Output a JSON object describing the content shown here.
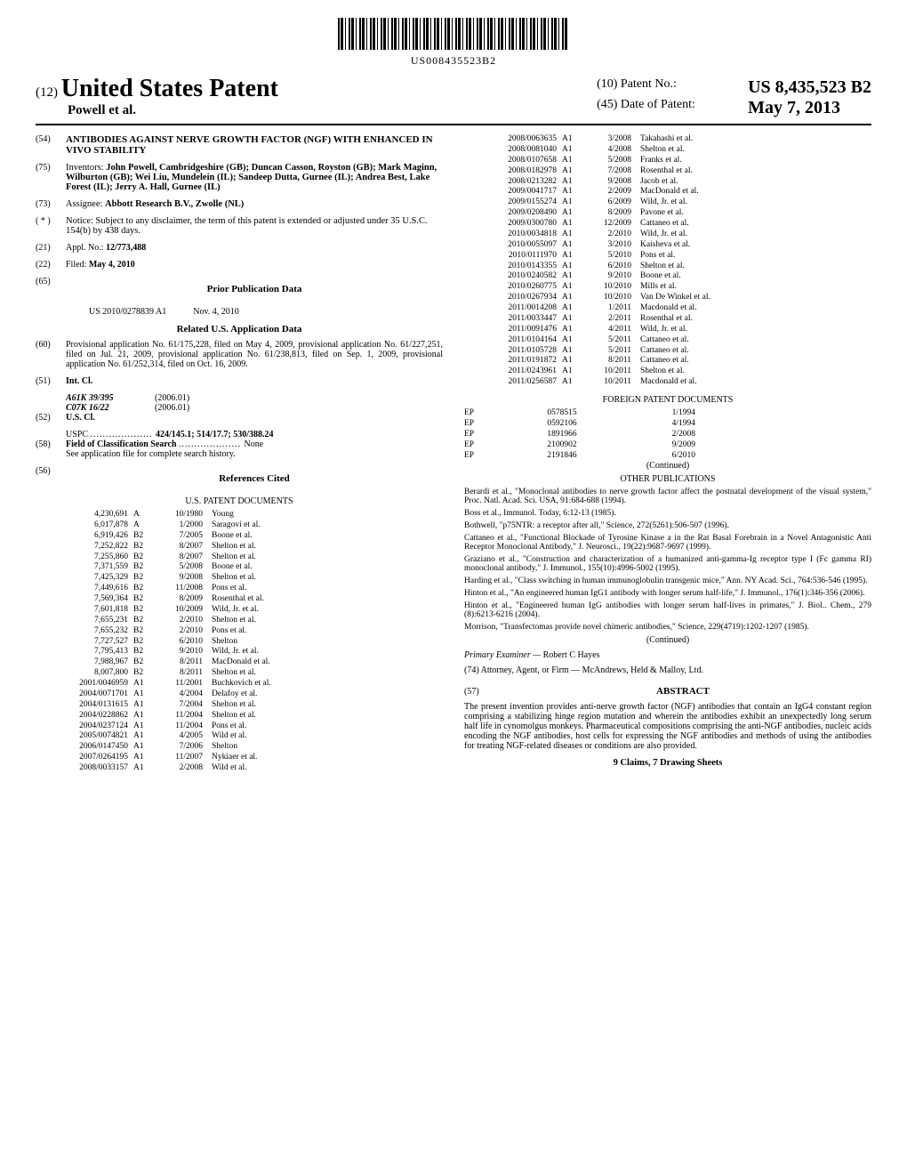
{
  "barcode_text": "US008435523B2",
  "header": {
    "prefix": "(12)",
    "usp": "United States Patent",
    "authors": "Powell et al.",
    "patno_label": "(10) Patent No.:",
    "patno": "US 8,435,523 B2",
    "date_label": "(45) Date of Patent:",
    "date": "May 7, 2013"
  },
  "left": {
    "title_num": "(54)",
    "title": "ANTIBODIES AGAINST NERVE GROWTH FACTOR (NGF) WITH ENHANCED IN VIVO STABILITY",
    "inv_num": "(75)",
    "inv_label": "Inventors:",
    "inventors": "John Powell, Cambridgeshire (GB); Duncan Casson, Royston (GB); Mark Maginn, Wilburton (GB); Wei Liu, Mundelein (IL); Sandeep Dutta, Gurnee (IL); Andrea Best, Lake Forest (IL); Jerry A. Hall, Gurnee (IL)",
    "ass_num": "(73)",
    "ass_label": "Assignee:",
    "assignee": "Abbott Research B.V., Zwolle (NL)",
    "notice_num": "( * )",
    "notice_label": "Notice:",
    "notice": "Subject to any disclaimer, the term of this patent is extended or adjusted under 35 U.S.C. 154(b) by 438 days.",
    "appl_num": "(21)",
    "appl_label": "Appl. No.:",
    "appl": "12/773,488",
    "filed_num": "(22)",
    "filed_label": "Filed:",
    "filed": "May 4, 2010",
    "prior_num": "(65)",
    "prior_head": "Prior Publication Data",
    "prior_pub": "US 2010/0278839 A1",
    "prior_date": "Nov. 4, 2010",
    "related_head": "Related U.S. Application Data",
    "prov_num": "(60)",
    "provisional": "Provisional application No. 61/175,228, filed on May 4, 2009, provisional application No. 61/227,251, filed on Jul. 21, 2009, provisional application No. 61/238,813, filed on Sep. 1, 2009, provisional application No. 61/252,314, filed on Oct. 16, 2009.",
    "intcl_num": "(51)",
    "intcl_label": "Int. Cl.",
    "intcl": [
      {
        "code": "A61K 39/395",
        "year": "(2006.01)"
      },
      {
        "code": "C07K 16/22",
        "year": "(2006.01)"
      }
    ],
    "uscl_num": "(52)",
    "uscl_label": "U.S. Cl.",
    "uscl_prefix": "USPC",
    "uscl": "424/145.1; 514/17.7; 530/388.24",
    "search_num": "(58)",
    "search_label": "Field of Classification Search",
    "search_val": "None",
    "search_note": "See application file for complete search history.",
    "refs_num": "(56)",
    "refs_head": "References Cited",
    "uspat_head": "U.S. PATENT DOCUMENTS",
    "us_patents": [
      [
        "4,230,691",
        "A",
        "10/1980",
        "Young"
      ],
      [
        "6,017,878",
        "A",
        "1/2000",
        "Saragovi et al."
      ],
      [
        "6,919,426",
        "B2",
        "7/2005",
        "Boone et al."
      ],
      [
        "7,252,822",
        "B2",
        "8/2007",
        "Shelton et al."
      ],
      [
        "7,255,860",
        "B2",
        "8/2007",
        "Shelton et al."
      ],
      [
        "7,371,559",
        "B2",
        "5/2008",
        "Boone et al."
      ],
      [
        "7,425,329",
        "B2",
        "9/2008",
        "Shelton et al."
      ],
      [
        "7,449,616",
        "B2",
        "11/2008",
        "Pons et al."
      ],
      [
        "7,569,364",
        "B2",
        "8/2009",
        "Rosenthal et al."
      ],
      [
        "7,601,818",
        "B2",
        "10/2009",
        "Wild, Jr. et al."
      ],
      [
        "7,655,231",
        "B2",
        "2/2010",
        "Shelton et al."
      ],
      [
        "7,655,232",
        "B2",
        "2/2010",
        "Pons et al."
      ],
      [
        "7,727,527",
        "B2",
        "6/2010",
        "Shelton"
      ],
      [
        "7,795,413",
        "B2",
        "9/2010",
        "Wild, Jr. et al."
      ],
      [
        "7,988,967",
        "B2",
        "8/2011",
        "MacDonald et al."
      ],
      [
        "8,007,800",
        "B2",
        "8/2011",
        "Shelton et al."
      ],
      [
        "2001/0046959",
        "A1",
        "11/2001",
        "Buchkovich et al."
      ],
      [
        "2004/0071701",
        "A1",
        "4/2004",
        "Delafoy et al."
      ],
      [
        "2004/0131615",
        "A1",
        "7/2004",
        "Shelton et al."
      ],
      [
        "2004/0228862",
        "A1",
        "11/2004",
        "Shelton et al."
      ],
      [
        "2004/0237124",
        "A1",
        "11/2004",
        "Pons et al."
      ],
      [
        "2005/0074821",
        "A1",
        "4/2005",
        "Wild et al."
      ],
      [
        "2006/0147450",
        "A1",
        "7/2006",
        "Shelton"
      ],
      [
        "2007/0264195",
        "A1",
        "11/2007",
        "Nykiaer et al."
      ],
      [
        "2008/0033157",
        "A1",
        "2/2008",
        "Wild et al."
      ]
    ]
  },
  "right": {
    "us_patents_cont": [
      [
        "2008/0063635",
        "A1",
        "3/2008",
        "Takahashi et al."
      ],
      [
        "2008/0081040",
        "A1",
        "4/2008",
        "Shelton et al."
      ],
      [
        "2008/0107658",
        "A1",
        "5/2008",
        "Franks et al."
      ],
      [
        "2008/0182978",
        "A1",
        "7/2008",
        "Rosenthal et al."
      ],
      [
        "2008/0213282",
        "A1",
        "9/2008",
        "Jacob et al."
      ],
      [
        "2009/0041717",
        "A1",
        "2/2009",
        "MacDonald et al."
      ],
      [
        "2009/0155274",
        "A1",
        "6/2009",
        "Wild, Jr. et al."
      ],
      [
        "2009/0208490",
        "A1",
        "8/2009",
        "Pavone et al."
      ],
      [
        "2009/0300780",
        "A1",
        "12/2009",
        "Cattaneo et al."
      ],
      [
        "2010/0034818",
        "A1",
        "2/2010",
        "Wild, Jr. et al."
      ],
      [
        "2010/0055097",
        "A1",
        "3/2010",
        "Kaisheva et al."
      ],
      [
        "2010/0111970",
        "A1",
        "5/2010",
        "Pons et al."
      ],
      [
        "2010/0143355",
        "A1",
        "6/2010",
        "Shelton et al."
      ],
      [
        "2010/0240582",
        "A1",
        "9/2010",
        "Boone et al."
      ],
      [
        "2010/0260775",
        "A1",
        "10/2010",
        "Mills et al."
      ],
      [
        "2010/0267934",
        "A1",
        "10/2010",
        "Van De Winkel et al."
      ],
      [
        "2011/0014208",
        "A1",
        "1/2011",
        "Macdonald et al."
      ],
      [
        "2011/0033447",
        "A1",
        "2/2011",
        "Rosenthal et al."
      ],
      [
        "2011/0091476",
        "A1",
        "4/2011",
        "Wild, Jr. et al."
      ],
      [
        "2011/0104164",
        "A1",
        "5/2011",
        "Cattaneo et al."
      ],
      [
        "2011/0105728",
        "A1",
        "5/2011",
        "Cattaneo et al."
      ],
      [
        "2011/0191872",
        "A1",
        "8/2011",
        "Cattaneo et al."
      ],
      [
        "2011/0243961",
        "A1",
        "10/2011",
        "Shelton et al."
      ],
      [
        "2011/0256587",
        "A1",
        "10/2011",
        "Macdonald et al."
      ]
    ],
    "foreign_head": "FOREIGN PATENT DOCUMENTS",
    "foreign": [
      [
        "EP",
        "0578515",
        "1/1994"
      ],
      [
        "EP",
        "0592106",
        "4/1994"
      ],
      [
        "EP",
        "1891966",
        "2/2008"
      ],
      [
        "EP",
        "2100902",
        "9/2009"
      ],
      [
        "EP",
        "2191846",
        "6/2010"
      ]
    ],
    "continued": "(Continued)",
    "otherpub_head": "OTHER PUBLICATIONS",
    "pubs": [
      "Berardi et al., \"Monoclonal antibodies to nerve growth factor affect the postnatal development of the visual system,\" Proc. Natl. Acad. Sci. USA, 91:684-688 (1994).",
      "Boss et al., Immunol. Today, 6:12-13 (1985).",
      "Bothwell, \"p75NTR: a receptor after all,\" Science, 272(5261):506-507 (1996).",
      "Cattaneo et al., \"Functional Blockade of Tyrosine Kinase a in the Rat Basal Forebrain in a Novel Antagonistic Anti Receptor Monoclonal Antibody,\" J. Neurosci., 19(22):9687-9697 (1999).",
      "Graziano et al., \"Construction and characterization of a humanized anti-gamma-Ig receptor type I (Fc gamma RI) monoclonal antibody,\" J. Immunol., 155(10):4996-5002 (1995).",
      "Harding et al., \"Class switching in human immunoglobulin transgenic mice,\" Ann. NY Acad. Sci., 764:536-546 (1995).",
      "Hinton et al., \"An engineered human IgG1 antibody with longer serum half-life,\" J. Immunol., 176(1):346-356 (2006).",
      "Hinton et al., \"Engineered human IgG antibodies with longer serum half-lives in primates,\" J. Biol.. Chem., 279 (8):6213-6216 (2004).",
      "Morrison, \"Transfectomas provide novel chimeric antibodies,\" Science, 229(4719):1202-1207 (1985)."
    ],
    "continued2": "(Continued)",
    "examiner_label": "Primary Examiner —",
    "examiner": "Robert C Hayes",
    "attorney_label": "(74) Attorney, Agent, or Firm —",
    "attorney": "McAndrews, Held & Malloy, Ltd.",
    "abstract_num": "(57)",
    "abstract_head": "ABSTRACT",
    "abstract": "The present invention provides anti-nerve growth factor (NGF) antibodies that contain an IgG4 constant region comprising a stabilizing hinge region mutation and wherein the antibodies exhibit an unexpectedly long serum half life in cynomolgus monkeys. Pharmaceutical compositions comprising the anti-NGF antibodies, nucleic acids encoding the NGF antibodies, host cells for expressing the NGF antibodies and methods of using the antibodies for treating NGF-related diseases or conditions are also provided.",
    "claims": "9 Claims, 7 Drawing Sheets"
  }
}
